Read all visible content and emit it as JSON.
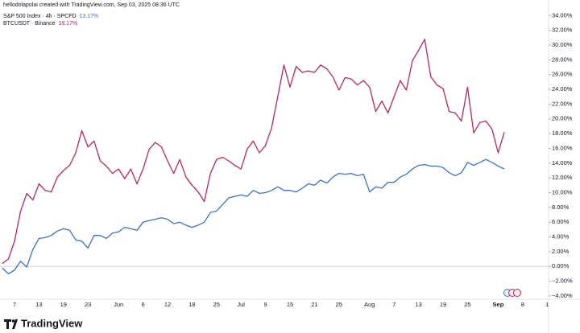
{
  "header": {
    "text": "hellodolapolai created with TradingView.com, Sep 03, 2025 08:36 UTC"
  },
  "chart_data": {
    "type": "line",
    "categories": [
      null,
      null,
      "7",
      null,
      null,
      null,
      "13",
      null,
      null,
      null,
      "19",
      null,
      null,
      null,
      "23",
      null,
      null,
      null,
      null,
      "Jun",
      null,
      null,
      null,
      "6",
      null,
      null,
      null,
      "12",
      null,
      null,
      null,
      "18",
      null,
      null,
      null,
      "25",
      null,
      null,
      null,
      "Jul",
      null,
      null,
      null,
      "9",
      null,
      null,
      null,
      "15",
      null,
      null,
      null,
      "21",
      null,
      null,
      null,
      "25",
      null,
      null,
      null,
      null,
      "Aug",
      null,
      null,
      null,
      "7",
      null,
      null,
      null,
      "13",
      null,
      null,
      null,
      "19",
      null,
      null,
      null,
      "25",
      null,
      null,
      null,
      null,
      "Sep",
      null,
      null,
      null,
      "8",
      null,
      null,
      null,
      "1"
    ],
    "series": [
      {
        "name": "S&P 500 Index · 4h · SPCFD",
        "last_value_label": "13.17%",
        "color": "#3b6fd8",
        "values": [
          -0.2,
          -1.0,
          -0.5,
          0.7,
          -0.1,
          2.3,
          3.8,
          3.9,
          4.2,
          4.8,
          5.1,
          4.9,
          3.6,
          3.4,
          2.5,
          4.2,
          4.2,
          3.8,
          4.5,
          4.7,
          5.3,
          5.1,
          4.9,
          6.0,
          6.2,
          6.4,
          6.6,
          6.4,
          5.8,
          6.0,
          5.6,
          5.3,
          5.6,
          6.0,
          7.3,
          7.5,
          8.4,
          9.3,
          9.5,
          9.7,
          9.5,
          10.3,
          9.9,
          10.0,
          10.3,
          10.8,
          10.3,
          10.3,
          10.1,
          10.6,
          11.2,
          11.0,
          11.7,
          11.3,
          12.1,
          12.6,
          12.5,
          12.6,
          12.3,
          12.5,
          10.1,
          10.8,
          10.6,
          11.4,
          11.4,
          12.1,
          12.5,
          13.2,
          13.7,
          13.8,
          13.6,
          13.6,
          13.4,
          12.7,
          12.3,
          12.7,
          14.1,
          13.7,
          14.1,
          14.5,
          14.1,
          13.6,
          13.2,
          null,
          null,
          null,
          null,
          null,
          null,
          null
        ]
      },
      {
        "name": "BTCUSDT · Binance",
        "last_value_label": "18.17%",
        "color": "#c2255c",
        "values": [
          0.4,
          1.0,
          3.4,
          7.5,
          9.9,
          9.0,
          11.2,
          10.3,
          10.1,
          12.1,
          13.0,
          13.7,
          15.4,
          18.4,
          16.2,
          17.0,
          14.3,
          13.6,
          12.6,
          13.2,
          11.9,
          13.2,
          11.2,
          13.2,
          15.9,
          16.8,
          16.2,
          14.3,
          12.6,
          14.5,
          12.1,
          11.0,
          10.1,
          8.8,
          12.6,
          14.5,
          14.8,
          14.3,
          13.7,
          13.2,
          15.9,
          17.0,
          15.4,
          16.4,
          18.8,
          23.0,
          27.3,
          24.3,
          27.1,
          26.3,
          26.5,
          26.3,
          27.3,
          26.8,
          25.7,
          23.9,
          25.6,
          25.4,
          24.6,
          25.2,
          24.3,
          21.0,
          22.4,
          20.8,
          23.0,
          25.2,
          23.9,
          27.9,
          29.3,
          30.8,
          25.7,
          24.6,
          24.1,
          21.0,
          20.8,
          19.7,
          24.3,
          18.1,
          19.5,
          19.7,
          18.6,
          15.4,
          18.2,
          null,
          null,
          null,
          null,
          null,
          null,
          null
        ]
      }
    ],
    "ylim": [
      -4.5,
      34.8
    ],
    "yticks": [
      {
        "value": 34,
        "label": "34.00%"
      },
      {
        "value": 32,
        "label": "32.00%"
      },
      {
        "value": 30,
        "label": "30.00%"
      },
      {
        "value": 28,
        "label": "28.00%"
      },
      {
        "value": 26,
        "label": "26.00%"
      },
      {
        "value": 24,
        "label": "24.00%"
      },
      {
        "value": 22,
        "label": "22.00%"
      },
      {
        "value": 20,
        "label": "20.00%"
      },
      {
        "value": 18,
        "label": "18.00%"
      },
      {
        "value": 16,
        "label": "16.00%"
      },
      {
        "value": 14,
        "label": "14.00%"
      },
      {
        "value": 12,
        "label": "12.00%"
      },
      {
        "value": 10,
        "label": "10.00%"
      },
      {
        "value": 8,
        "label": "8.00%"
      },
      {
        "value": 6,
        "label": "6.00%"
      },
      {
        "value": 4,
        "label": "4.00%"
      },
      {
        "value": 2,
        "label": "2.00%"
      },
      {
        "value": 0,
        "label": "0.00%"
      },
      {
        "value": -2,
        "label": "−2.00%"
      },
      {
        "value": -4,
        "label": "−4.00%"
      }
    ],
    "highlight_category": "Sep"
  },
  "footer": {
    "brand": "TradingView"
  }
}
